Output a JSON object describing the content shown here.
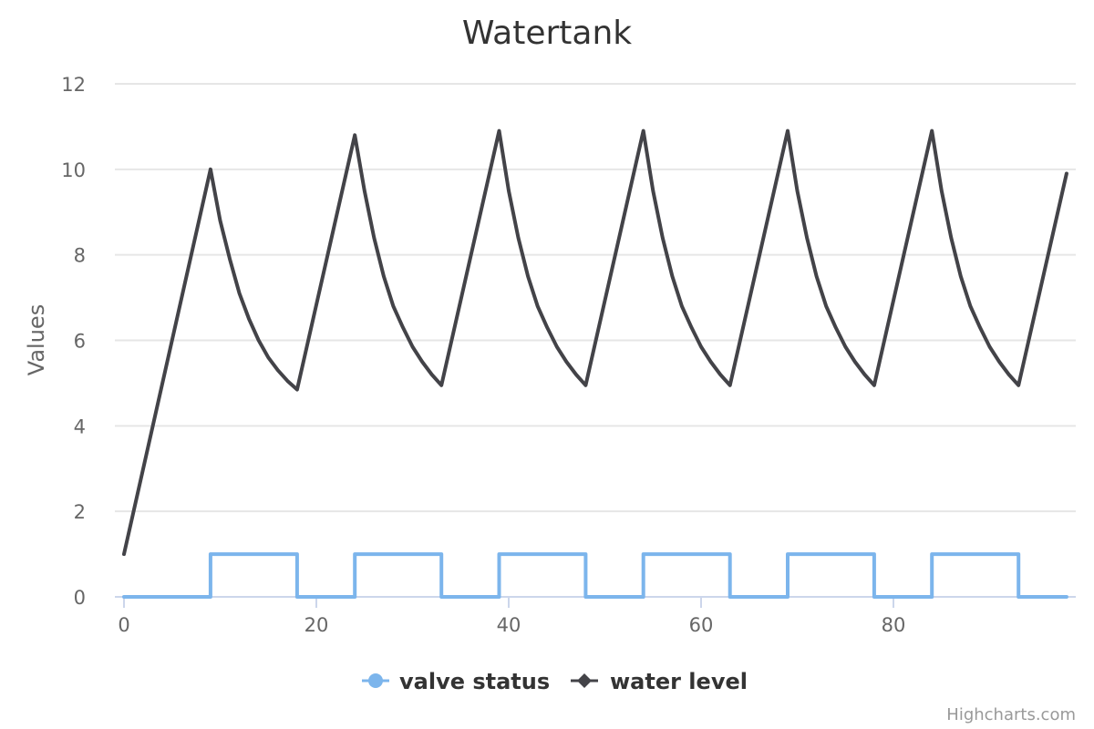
{
  "chart_data": {
    "type": "line",
    "title": "Watertank",
    "xlabel": "",
    "ylabel": "Values",
    "xlim": [
      0,
      98
    ],
    "ylim": [
      0,
      12
    ],
    "x_ticks": [
      0,
      20,
      40,
      60,
      80
    ],
    "y_ticks": [
      0,
      2,
      4,
      6,
      8,
      10,
      12
    ],
    "grid": "horizontal",
    "legend_position": "bottom-center",
    "credits": "Highcharts.com",
    "series": [
      {
        "name": "valve status",
        "color": "#7cb5ec",
        "step": true,
        "points": [
          [
            0,
            0
          ],
          [
            9,
            0
          ],
          [
            9,
            1
          ],
          [
            18,
            1
          ],
          [
            18,
            0
          ],
          [
            24,
            0
          ],
          [
            24,
            1
          ],
          [
            33,
            1
          ],
          [
            33,
            0
          ],
          [
            39,
            0
          ],
          [
            39,
            1
          ],
          [
            48,
            1
          ],
          [
            48,
            0
          ],
          [
            54,
            0
          ],
          [
            54,
            1
          ],
          [
            63,
            1
          ],
          [
            63,
            0
          ],
          [
            69,
            0
          ],
          [
            69,
            1
          ],
          [
            78,
            1
          ],
          [
            78,
            0
          ],
          [
            84,
            0
          ],
          [
            84,
            1
          ],
          [
            93,
            1
          ],
          [
            93,
            0
          ],
          [
            98,
            0
          ]
        ]
      },
      {
        "name": "water level",
        "color": "#434348",
        "step": false,
        "points": [
          [
            0,
            1
          ],
          [
            9,
            10
          ],
          [
            10,
            8.8
          ],
          [
            11,
            7.9
          ],
          [
            12,
            7.1
          ],
          [
            13,
            6.5
          ],
          [
            14,
            6.0
          ],
          [
            15,
            5.6
          ],
          [
            16,
            5.3
          ],
          [
            17,
            5.05
          ],
          [
            18,
            4.85
          ],
          [
            24,
            10.8
          ],
          [
            25,
            9.5
          ],
          [
            26,
            8.4
          ],
          [
            27,
            7.5
          ],
          [
            28,
            6.8
          ],
          [
            29,
            6.3
          ],
          [
            30,
            5.85
          ],
          [
            31,
            5.5
          ],
          [
            32,
            5.2
          ],
          [
            33,
            4.95
          ],
          [
            39,
            10.9
          ],
          [
            40,
            9.5
          ],
          [
            41,
            8.4
          ],
          [
            42,
            7.5
          ],
          [
            43,
            6.8
          ],
          [
            44,
            6.3
          ],
          [
            45,
            5.85
          ],
          [
            46,
            5.5
          ],
          [
            47,
            5.2
          ],
          [
            48,
            4.95
          ],
          [
            54,
            10.9
          ],
          [
            55,
            9.5
          ],
          [
            56,
            8.4
          ],
          [
            57,
            7.5
          ],
          [
            58,
            6.8
          ],
          [
            59,
            6.3
          ],
          [
            60,
            5.85
          ],
          [
            61,
            5.5
          ],
          [
            62,
            5.2
          ],
          [
            63,
            4.95
          ],
          [
            69,
            10.9
          ],
          [
            70,
            9.5
          ],
          [
            71,
            8.4
          ],
          [
            72,
            7.5
          ],
          [
            73,
            6.8
          ],
          [
            74,
            6.3
          ],
          [
            75,
            5.85
          ],
          [
            76,
            5.5
          ],
          [
            77,
            5.2
          ],
          [
            78,
            4.95
          ],
          [
            84,
            10.9
          ],
          [
            85,
            9.5
          ],
          [
            86,
            8.4
          ],
          [
            87,
            7.5
          ],
          [
            88,
            6.8
          ],
          [
            89,
            6.3
          ],
          [
            90,
            5.85
          ],
          [
            91,
            5.5
          ],
          [
            92,
            5.2
          ],
          [
            93,
            4.95
          ],
          [
            98,
            9.9
          ]
        ]
      }
    ]
  }
}
